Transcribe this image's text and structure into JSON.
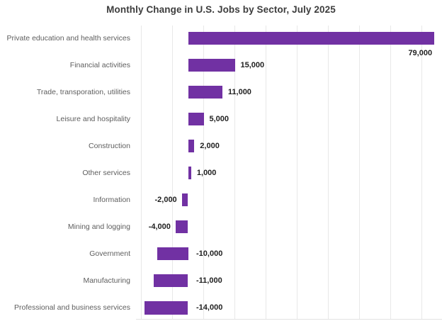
{
  "chart_data": {
    "type": "bar",
    "orientation": "horizontal",
    "title": "Monthly Change in U.S. Jobs by Sector, July 2025",
    "categories": [
      "Private education and health services",
      "Financial activities",
      "Trade, transporation, utilities",
      "Leisure and hospitality",
      "Construction",
      "Other services",
      "Information",
      "Mining and logging",
      "Government",
      "Manufacturing",
      "Professional and business services"
    ],
    "values": [
      79000,
      15000,
      11000,
      5000,
      2000,
      1000,
      -2000,
      -4000,
      -10000,
      -11000,
      -14000
    ],
    "value_labels": [
      "79,000",
      "15,000",
      "11,000",
      "5,000",
      "2,000",
      "1,000",
      "-2,000",
      "-4,000",
      "-10,000",
      "-11,000",
      "-14,000"
    ],
    "xlim": [
      -16000,
      82000
    ],
    "gridline_values": [
      -15000,
      -5000,
      5000,
      15000,
      25000,
      35000,
      45000,
      55000,
      65000,
      75000
    ],
    "grid": true,
    "legend": false,
    "axis_tick_labels_visible": false,
    "colors": {
      "bar": "#7131A3",
      "gridline": "#e8e8e8",
      "axis_line": "#e2e2e2",
      "title_text": "#3d3d3d",
      "category_text": "#5e5e5e",
      "value_text": "#1f1f1f",
      "background": "#ffffff"
    }
  }
}
